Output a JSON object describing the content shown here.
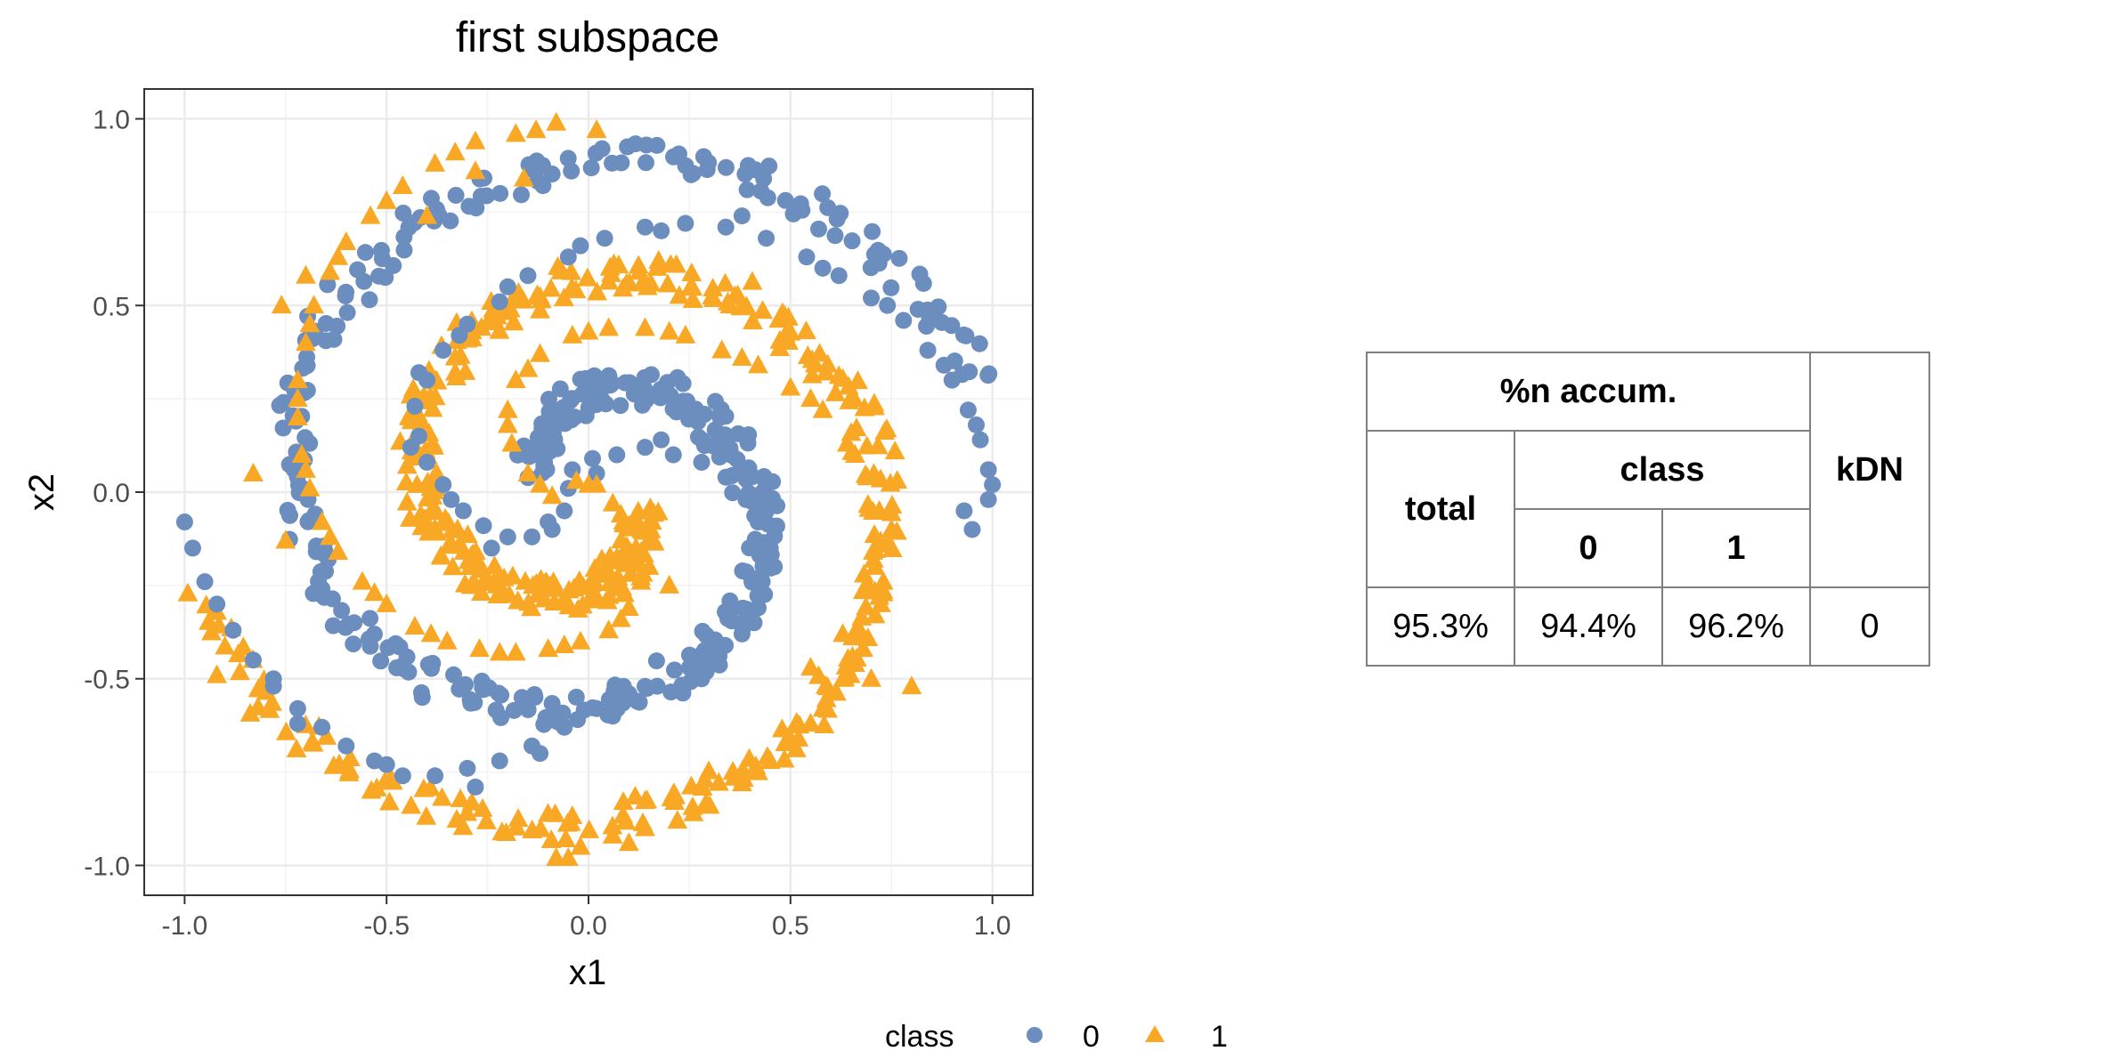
{
  "chart_data": {
    "type": "scatter",
    "title": "first subspace",
    "xlabel": "x1",
    "ylabel": "x2",
    "xlim": [
      -1.1,
      1.1
    ],
    "ylim": [
      -1.08,
      1.08
    ],
    "xticks": [
      "-1.0",
      "-0.5",
      "0.0",
      "0.5",
      "1.0"
    ],
    "yticks": [
      "-1.0",
      "-0.5",
      "0.0",
      "0.5",
      "1.0"
    ],
    "grid": true,
    "legend": {
      "title": "class",
      "position": "bottom",
      "entries": [
        "0",
        "1"
      ]
    },
    "colors": {
      "class0": "#6C8EBF",
      "class1": "#F9A825"
    },
    "markers": {
      "class0": "circle",
      "class1": "triangle"
    },
    "spiral_model": {
      "class0": {
        "theta_range_rad": [
          0.44,
          9.14
        ],
        "radius": "0.1 + 0.1*theta",
        "phase": 0
      },
      "class1": {
        "theta_range_rad": [
          0.44,
          9.14
        ],
        "radius": "0.1 + 0.1*theta",
        "phase": 3.14159
      }
    },
    "series": [
      {
        "name": "0",
        "points": [
          [
            -1.0,
            -0.08
          ],
          [
            -0.98,
            -0.15
          ],
          [
            -0.95,
            -0.24
          ],
          [
            -0.92,
            -0.3
          ],
          [
            -0.88,
            -0.37
          ],
          [
            -0.83,
            -0.45
          ],
          [
            -0.78,
            -0.5
          ],
          [
            -0.72,
            -0.58
          ],
          [
            -0.66,
            -0.63
          ],
          [
            -0.6,
            -0.68
          ],
          [
            -0.53,
            -0.72
          ],
          [
            -0.46,
            -0.76
          ],
          [
            -0.38,
            -0.76
          ],
          [
            -0.3,
            -0.74
          ],
          [
            -0.22,
            -0.72
          ],
          [
            -0.14,
            -0.68
          ],
          [
            -0.06,
            -0.63
          ],
          [
            0.02,
            -0.58
          ],
          [
            0.1,
            -0.54
          ],
          [
            0.17,
            -0.52
          ],
          [
            0.25,
            -0.47
          ],
          [
            0.32,
            -0.44
          ],
          [
            0.38,
            -0.38
          ],
          [
            0.42,
            -0.31
          ],
          [
            0.43,
            -0.24
          ],
          [
            0.45,
            -0.15
          ],
          [
            0.42,
            -0.08
          ],
          [
            0.39,
            -0.02
          ],
          [
            0.34,
            0.04
          ],
          [
            0.28,
            0.08
          ],
          [
            0.21,
            0.1
          ],
          [
            0.14,
            0.12
          ],
          [
            0.07,
            0.1
          ],
          [
            0.01,
            0.09
          ],
          [
            -0.04,
            0.06
          ],
          [
            -0.05,
            0.01
          ],
          [
            -0.06,
            -0.05
          ],
          [
            -0.09,
            -0.1
          ],
          [
            -0.14,
            -0.12
          ],
          [
            -0.2,
            -0.12
          ],
          [
            -0.26,
            -0.09
          ],
          [
            -0.31,
            -0.05
          ],
          [
            -0.36,
            0.02
          ],
          [
            -0.4,
            0.08
          ],
          [
            -0.42,
            0.15
          ],
          [
            -0.43,
            0.23
          ],
          [
            -0.4,
            0.3
          ],
          [
            -0.36,
            0.38
          ],
          [
            -0.3,
            0.45
          ],
          [
            -0.22,
            0.51
          ],
          [
            -0.15,
            0.58
          ],
          [
            -0.05,
            0.63
          ],
          [
            0.04,
            0.68
          ],
          [
            0.14,
            0.71
          ],
          [
            0.24,
            0.72
          ],
          [
            0.34,
            0.71
          ],
          [
            0.44,
            0.68
          ],
          [
            0.54,
            0.63
          ],
          [
            0.62,
            0.58
          ],
          [
            0.7,
            0.52
          ],
          [
            0.78,
            0.46
          ],
          [
            0.84,
            0.38
          ],
          [
            0.9,
            0.3
          ],
          [
            0.94,
            0.22
          ],
          [
            0.97,
            0.14
          ],
          [
            0.99,
            0.06
          ],
          [
            0.99,
            -0.02
          ],
          [
            0.95,
            -0.1
          ],
          [
            -0.78,
            -0.52
          ],
          [
            -0.72,
            -0.62
          ],
          [
            -0.5,
            -0.73
          ],
          [
            -0.28,
            -0.79
          ],
          [
            -0.12,
            -0.7
          ],
          [
            0.06,
            -0.6
          ],
          [
            0.28,
            -0.5
          ],
          [
            0.41,
            -0.35
          ],
          [
            0.46,
            -0.2
          ],
          [
            0.44,
            -0.05
          ],
          [
            0.33,
            0.12
          ],
          [
            0.18,
            0.14
          ],
          [
            0.02,
            0.05
          ],
          [
            -0.1,
            -0.08
          ],
          [
            -0.24,
            -0.15
          ],
          [
            -0.34,
            -0.02
          ],
          [
            -0.44,
            0.12
          ],
          [
            -0.42,
            0.32
          ],
          [
            -0.32,
            0.42
          ],
          [
            -0.2,
            0.55
          ],
          [
            -0.02,
            0.66
          ],
          [
            0.18,
            0.7
          ],
          [
            0.38,
            0.74
          ],
          [
            0.58,
            0.6
          ],
          [
            0.74,
            0.5
          ],
          [
            0.88,
            0.34
          ],
          [
            0.96,
            0.18
          ],
          [
            1.0,
            0.02
          ],
          [
            0.93,
            -0.05
          ]
        ]
      },
      {
        "name": "1",
        "points": [
          [
            -0.08,
            -0.98
          ],
          [
            -0.02,
            -0.95
          ],
          [
            0.06,
            -0.92
          ],
          [
            0.14,
            -0.9
          ],
          [
            0.22,
            -0.88
          ],
          [
            0.3,
            -0.84
          ],
          [
            0.38,
            -0.78
          ],
          [
            0.45,
            -0.72
          ],
          [
            0.52,
            -0.66
          ],
          [
            0.58,
            -0.58
          ],
          [
            0.63,
            -0.5
          ],
          [
            0.68,
            -0.42
          ],
          [
            0.71,
            -0.33
          ],
          [
            0.73,
            -0.24
          ],
          [
            0.74,
            -0.14
          ],
          [
            0.72,
            -0.05
          ],
          [
            0.69,
            0.04
          ],
          [
            0.64,
            0.13
          ],
          [
            0.58,
            0.22
          ],
          [
            0.5,
            0.28
          ],
          [
            0.42,
            0.34
          ],
          [
            0.33,
            0.38
          ],
          [
            0.24,
            0.42
          ],
          [
            0.14,
            0.44
          ],
          [
            0.05,
            0.44
          ],
          [
            -0.04,
            0.42
          ],
          [
            -0.12,
            0.37
          ],
          [
            -0.18,
            0.3
          ],
          [
            -0.2,
            0.22
          ],
          [
            -0.19,
            0.13
          ],
          [
            -0.15,
            0.05
          ],
          [
            -0.09,
            -0.01
          ],
          [
            -0.03,
            0.03
          ],
          [
            0.02,
            0.02
          ],
          [
            0.06,
            -0.03
          ],
          [
            0.1,
            -0.09
          ],
          [
            0.13,
            -0.16
          ],
          [
            0.13,
            -0.24
          ],
          [
            0.1,
            -0.31
          ],
          [
            0.05,
            -0.37
          ],
          [
            -0.02,
            -0.4
          ],
          [
            -0.1,
            -0.42
          ],
          [
            -0.18,
            -0.43
          ],
          [
            -0.27,
            -0.42
          ],
          [
            -0.35,
            -0.4
          ],
          [
            -0.43,
            -0.36
          ],
          [
            -0.5,
            -0.3
          ],
          [
            -0.56,
            -0.24
          ],
          [
            -0.62,
            -0.16
          ],
          [
            -0.66,
            -0.08
          ],
          [
            -0.69,
            0.01
          ],
          [
            -0.71,
            0.1
          ],
          [
            -0.72,
            0.2
          ],
          [
            -0.72,
            0.3
          ],
          [
            -0.7,
            0.4
          ],
          [
            -0.68,
            0.5
          ],
          [
            -0.64,
            0.59
          ],
          [
            -0.6,
            0.67
          ],
          [
            -0.54,
            0.74
          ],
          [
            -0.46,
            0.82
          ],
          [
            -0.38,
            0.88
          ],
          [
            -0.28,
            0.94
          ],
          [
            -0.18,
            0.96
          ],
          [
            -0.08,
            0.99
          ],
          [
            0.02,
            0.97
          ],
          [
            -0.05,
            -0.98
          ],
          [
            0.1,
            -0.94
          ],
          [
            0.26,
            -0.86
          ],
          [
            0.42,
            -0.75
          ],
          [
            0.55,
            -0.62
          ],
          [
            0.66,
            -0.46
          ],
          [
            0.72,
            -0.28
          ],
          [
            0.75,
            -0.1
          ],
          [
            0.66,
            0.1
          ],
          [
            0.55,
            0.25
          ],
          [
            0.38,
            0.36
          ],
          [
            0.2,
            0.43
          ],
          [
            0.0,
            0.43
          ],
          [
            -0.15,
            0.33
          ],
          [
            -0.2,
            0.18
          ],
          [
            -0.12,
            0.02
          ],
          [
            0.08,
            -0.06
          ],
          [
            0.15,
            -0.2
          ],
          [
            0.08,
            -0.34
          ],
          [
            -0.06,
            -0.41
          ],
          [
            -0.22,
            -0.43
          ],
          [
            -0.39,
            -0.38
          ],
          [
            -0.53,
            -0.27
          ],
          [
            -0.64,
            -0.12
          ],
          [
            -0.7,
            0.06
          ],
          [
            -0.72,
            0.25
          ],
          [
            -0.69,
            0.45
          ],
          [
            -0.62,
            0.63
          ],
          [
            -0.5,
            0.78
          ],
          [
            -0.33,
            0.91
          ],
          [
            -0.13,
            0.97
          ],
          [
            -0.4,
            0.74
          ],
          [
            -0.28,
            0.86
          ],
          [
            -0.16,
            0.84
          ],
          [
            0.35,
            0.5
          ],
          [
            0.7,
            -0.5
          ],
          [
            0.8,
            -0.52
          ],
          [
            0.55,
            -0.47
          ],
          [
            -0.83,
            0.05
          ],
          [
            -0.75,
            -0.13
          ],
          [
            -0.76,
            0.5
          ],
          [
            -0.7,
            0.58
          ],
          [
            0.0,
            0.02
          ],
          [
            0.2,
            -0.25
          ]
        ]
      }
    ]
  },
  "table": {
    "header_group": "%n accum.",
    "header_total": "total",
    "header_class": "class",
    "header_class0": "0",
    "header_class1": "1",
    "header_kdn": "kDN",
    "row": {
      "total": "95.3%",
      "class0": "94.4%",
      "class1": "96.2%",
      "kdn": "0"
    }
  }
}
